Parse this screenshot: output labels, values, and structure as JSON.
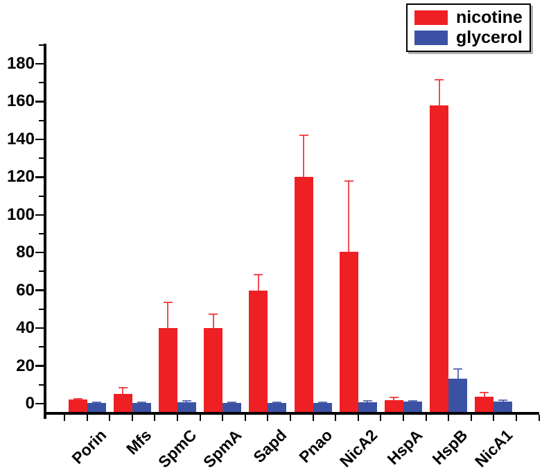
{
  "figure": {
    "background": "#ffffff",
    "axis_color": "#000000"
  },
  "legend": {
    "position": "top-right",
    "items": [
      {
        "label": "nicotine",
        "color": "#ee2024"
      },
      {
        "label": "glycerol",
        "color": "#3b52a4"
      }
    ]
  },
  "chart_data": {
    "type": "bar",
    "title": "",
    "xlabel": "",
    "ylabel": "",
    "categories": [
      "Porin",
      "Mfs",
      "SpmC",
      "SpmA",
      "Sapd",
      "Pnao",
      "NicA2",
      "HspA",
      "HspB",
      "NicA1"
    ],
    "series": [
      {
        "name": "nicotine",
        "color": "#ee2024",
        "values": [
          2.2,
          5,
          40,
          40,
          60,
          120,
          80.5,
          2,
          158,
          3.5
        ],
        "errors_upper": [
          0.5,
          3.5,
          13.5,
          7.5,
          8.5,
          22,
          37.5,
          1.2,
          13.5,
          2.2
        ]
      },
      {
        "name": "glycerol",
        "color": "#3b52a4",
        "values": [
          0.5,
          0.5,
          0.8,
          0.4,
          0.4,
          0.4,
          0.9,
          1.0,
          13.3,
          1.2
        ],
        "errors_upper": [
          0.3,
          0.3,
          0.5,
          0.2,
          0.2,
          0.2,
          0.5,
          0.6,
          5.2,
          0.7
        ]
      }
    ],
    "error_bars": "upper",
    "grid": false,
    "legend_position": "top-right",
    "ylim": [
      -5,
      190
    ],
    "y_major_ticks": [
      0,
      20,
      40,
      60,
      80,
      100,
      120,
      140,
      160,
      180
    ],
    "y_minor_ticks": [
      10,
      30,
      50,
      70,
      90,
      110,
      130,
      150,
      170,
      190
    ]
  }
}
